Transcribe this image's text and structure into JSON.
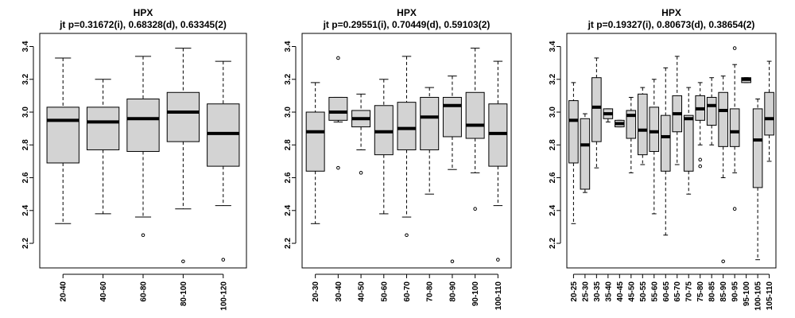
{
  "chart_data": [
    {
      "type": "boxplot",
      "title": "HPX",
      "subtitle": "jt p=0.31672(i), 0.68328(d), 0.63345(2)",
      "ylim": [
        2.05,
        3.48
      ],
      "yticks": [
        2.2,
        2.4,
        2.6,
        2.8,
        3.0,
        3.2,
        3.4
      ],
      "ytick_labels": [
        "2.2",
        "2.4",
        "2.6",
        "2.8",
        "3.0",
        "3.2",
        "3.4"
      ],
      "categories": [
        "20-40",
        "40-60",
        "60-80",
        "80-100",
        "100-120"
      ],
      "boxes": [
        {
          "min": 2.32,
          "q1": 2.69,
          "median": 2.95,
          "q3": 3.03,
          "max": 3.33,
          "outliers": []
        },
        {
          "min": 2.38,
          "q1": 2.77,
          "median": 2.94,
          "q3": 3.03,
          "max": 3.2,
          "outliers": []
        },
        {
          "min": 2.36,
          "q1": 2.76,
          "median": 2.96,
          "q3": 3.08,
          "max": 3.34,
          "outliers": [
            2.25
          ]
        },
        {
          "min": 2.41,
          "q1": 2.82,
          "median": 3.0,
          "q3": 3.12,
          "max": 3.39,
          "outliers": [
            2.09
          ]
        },
        {
          "min": 2.43,
          "q1": 2.67,
          "median": 2.87,
          "q3": 3.05,
          "max": 3.31,
          "outliers": [
            2.1
          ]
        }
      ]
    },
    {
      "type": "boxplot",
      "title": "HPX",
      "subtitle": "jt p=0.29551(i), 0.70449(d), 0.59103(2)",
      "ylim": [
        2.05,
        3.48
      ],
      "yticks": [
        2.2,
        2.4,
        2.6,
        2.8,
        3.0,
        3.2,
        3.4
      ],
      "ytick_labels": [
        "2.2",
        "2.4",
        "2.6",
        "2.8",
        "3.0",
        "3.2",
        "3.4"
      ],
      "categories": [
        "20-30",
        "30-40",
        "40-50",
        "50-60",
        "60-70",
        "70-80",
        "80-90",
        "90-100",
        "100-110"
      ],
      "boxes": [
        {
          "min": 2.32,
          "q1": 2.64,
          "median": 2.88,
          "q3": 3.0,
          "max": 3.18,
          "outliers": []
        },
        {
          "min": 2.94,
          "q1": 2.95,
          "median": 3.0,
          "q3": 3.09,
          "max": 3.09,
          "outliers": [
            3.33,
            2.66
          ]
        },
        {
          "min": 2.77,
          "q1": 2.91,
          "median": 2.96,
          "q3": 3.01,
          "max": 3.11,
          "outliers": [
            2.63
          ]
        },
        {
          "min": 2.38,
          "q1": 2.74,
          "median": 2.88,
          "q3": 3.04,
          "max": 3.2,
          "outliers": []
        },
        {
          "min": 2.36,
          "q1": 2.77,
          "median": 2.9,
          "q3": 3.06,
          "max": 3.34,
          "outliers": [
            2.25
          ]
        },
        {
          "min": 2.5,
          "q1": 2.77,
          "median": 2.97,
          "q3": 3.09,
          "max": 3.15,
          "outliers": []
        },
        {
          "min": 2.65,
          "q1": 2.85,
          "median": 3.04,
          "q3": 3.09,
          "max": 3.22,
          "outliers": [
            2.09
          ]
        },
        {
          "min": 2.63,
          "q1": 2.84,
          "median": 2.92,
          "q3": 3.12,
          "max": 3.39,
          "outliers": [
            2.41
          ]
        },
        {
          "min": 2.43,
          "q1": 2.67,
          "median": 2.87,
          "q3": 3.05,
          "max": 3.31,
          "outliers": [
            2.1
          ]
        }
      ]
    },
    {
      "type": "boxplot",
      "title": "HPX",
      "subtitle": "jt p=0.19327(i), 0.80673(d), 0.38654(2)",
      "ylim": [
        2.05,
        3.48
      ],
      "yticks": [
        2.2,
        2.4,
        2.6,
        2.8,
        3.0,
        3.2,
        3.4
      ],
      "ytick_labels": [
        "2.2",
        "2.4",
        "2.6",
        "2.8",
        "3.0",
        "3.2",
        "3.4"
      ],
      "categories": [
        "20-25",
        "25-30",
        "30-35",
        "35-40",
        "40-45",
        "45-50",
        "50-55",
        "55-60",
        "60-65",
        "65-70",
        "70-75",
        "75-80",
        "80-85",
        "85-90",
        "90-95",
        "95-100",
        "100-105",
        "105-110"
      ],
      "boxes": [
        {
          "min": 2.32,
          "q1": 2.69,
          "median": 2.95,
          "q3": 3.07,
          "max": 3.18,
          "outliers": []
        },
        {
          "min": 2.51,
          "q1": 2.53,
          "median": 2.8,
          "q3": 2.96,
          "max": 2.99,
          "outliers": []
        },
        {
          "min": 2.66,
          "q1": 2.82,
          "median": 3.03,
          "q3": 3.21,
          "max": 3.33,
          "outliers": []
        },
        {
          "min": 2.94,
          "q1": 2.96,
          "median": 2.99,
          "q3": 3.02,
          "max": 3.02,
          "outliers": []
        },
        {
          "min": 2.91,
          "q1": 2.91,
          "median": 2.93,
          "q3": 2.95,
          "max": 2.95,
          "outliers": []
        },
        {
          "min": 2.63,
          "q1": 2.84,
          "median": 2.98,
          "q3": 3.01,
          "max": 3.09,
          "outliers": []
        },
        {
          "min": 2.68,
          "q1": 2.74,
          "median": 2.89,
          "q3": 3.11,
          "max": 3.15,
          "outliers": []
        },
        {
          "min": 2.38,
          "q1": 2.76,
          "median": 2.88,
          "q3": 3.03,
          "max": 3.2,
          "outliers": []
        },
        {
          "min": 2.25,
          "q1": 2.64,
          "median": 2.85,
          "q3": 2.98,
          "max": 3.27,
          "outliers": []
        },
        {
          "min": 2.68,
          "q1": 2.88,
          "median": 2.99,
          "q3": 3.1,
          "max": 3.34,
          "outliers": []
        },
        {
          "min": 2.5,
          "q1": 2.64,
          "median": 2.96,
          "q3": 2.98,
          "max": 3.15,
          "outliers": []
        },
        {
          "min": 2.8,
          "q1": 2.95,
          "median": 3.02,
          "q3": 3.1,
          "max": 3.18,
          "outliers": [
            2.71,
            2.67
          ]
        },
        {
          "min": 2.8,
          "q1": 2.92,
          "median": 3.04,
          "q3": 3.09,
          "max": 3.21,
          "outliers": []
        },
        {
          "min": 2.6,
          "q1": 2.79,
          "median": 3.01,
          "q3": 3.12,
          "max": 3.22,
          "outliers": [
            2.09
          ]
        },
        {
          "min": 2.63,
          "q1": 2.79,
          "median": 2.88,
          "q3": 3.02,
          "max": 3.29,
          "outliers": [
            3.39,
            2.41
          ]
        },
        {
          "min": 3.18,
          "q1": 3.18,
          "median": 3.2,
          "q3": 3.21,
          "max": 3.21,
          "outliers": []
        },
        {
          "min": 2.1,
          "q1": 2.54,
          "median": 2.83,
          "q3": 3.02,
          "max": 3.08,
          "outliers": []
        },
        {
          "min": 2.7,
          "q1": 2.86,
          "median": 2.96,
          "q3": 3.12,
          "max": 3.31,
          "outliers": []
        }
      ]
    }
  ]
}
